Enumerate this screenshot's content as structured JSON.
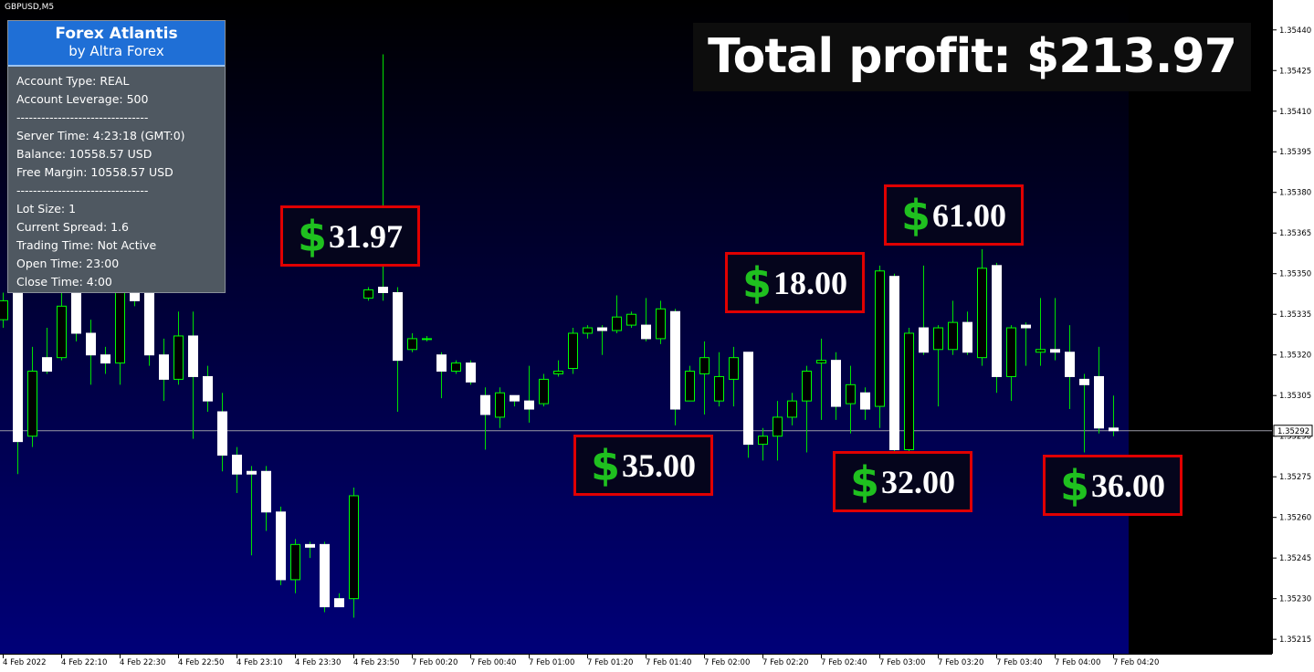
{
  "symbol": "GBPUSD,M5",
  "info_panel": {
    "title": "Forex Atlantis",
    "subtitle": "by Altra Forex",
    "lines": [
      "Account Type: REAL",
      "Account Leverage: 500",
      "--------------------------------",
      "Server Time: 4:23:18 (GMT:0)",
      "Balance: 10558.57 USD",
      "Free Margin: 10558.57 USD",
      "--------------------------------",
      "Lot Size: 1",
      "Current Spread: 1.6",
      "Trading Time: Not Active",
      "Open Time: 23:00",
      "Close Time: 4:00"
    ]
  },
  "total_profit": "Total profit: $213.97",
  "chart_data": {
    "type": "candlestick",
    "categories": [
      "4 Feb 2022",
      null,
      null,
      null,
      "4 Feb 22:10",
      null,
      null,
      null,
      "4 Feb 22:30",
      null,
      null,
      null,
      "4 Feb 22:50",
      null,
      null,
      null,
      "4 Feb 23:10",
      null,
      null,
      null,
      "4 Feb 23:30",
      null,
      null,
      null,
      "4 Feb 23:50",
      null,
      null,
      null,
      "7 Feb 00:20",
      null,
      null,
      null,
      "7 Feb 00:40",
      null,
      null,
      null,
      "7 Feb 01:00",
      null,
      null,
      null,
      "7 Feb 01:20",
      null,
      null,
      null,
      "7 Feb 01:40",
      null,
      null,
      null,
      "7 Feb 02:00",
      null,
      null,
      null,
      "7 Feb 02:20",
      null,
      null,
      null,
      "7 Feb 02:40",
      null,
      null,
      null,
      "7 Feb 03:00",
      null,
      null,
      null,
      "7 Feb 03:20",
      null,
      null,
      null,
      "7 Feb 03:40",
      null,
      null,
      null,
      "7 Feb 04:00",
      null,
      null,
      null,
      "7 Feb 04:20"
    ],
    "open": [
      1.35333,
      1.35343,
      1.3529,
      1.35319,
      1.35319,
      1.35343,
      1.35328,
      1.3532,
      1.35317,
      1.35343,
      1.35343,
      1.3532,
      1.35311,
      1.35327,
      1.35312,
      1.35299,
      1.35283,
      1.35277,
      1.35277,
      1.35262,
      1.35237,
      1.3525,
      1.3525,
      1.3523,
      1.3523,
      1.35341,
      1.35345,
      1.35343,
      1.35322,
      1.35326,
      1.3532,
      1.35314,
      1.35317,
      1.35305,
      1.35297,
      1.35305,
      1.35303,
      1.35302,
      1.35313,
      1.35315,
      1.35328,
      1.3533,
      1.35329,
      1.35331,
      1.35331,
      1.35326,
      1.35336,
      1.35303,
      1.35313,
      1.35303,
      1.35311,
      1.35321,
      1.35287,
      1.3529,
      1.35297,
      1.35303,
      1.35317,
      1.35318,
      1.35302,
      1.35306,
      1.35301,
      1.35349,
      1.35285,
      1.3533,
      1.35322,
      1.35322,
      1.35332,
      1.35319,
      1.35353,
      1.35312,
      1.35331,
      1.35321,
      1.35322,
      1.35321,
      1.35311,
      1.35312,
      1.35293
    ],
    "high": [
      1.35343,
      1.35347,
      1.35323,
      1.3533,
      1.35343,
      1.3535,
      1.35333,
      1.35323,
      1.35347,
      1.35347,
      1.3535,
      1.35326,
      1.35336,
      1.35336,
      1.35316,
      1.35306,
      1.35286,
      1.35279,
      1.35279,
      1.35264,
      1.35252,
      1.35251,
      1.35251,
      1.35232,
      1.35271,
      1.35345,
      1.35431,
      1.35345,
      1.35328,
      1.35327,
      1.35321,
      1.35318,
      1.35318,
      1.35308,
      1.35308,
      1.35305,
      1.35316,
      1.35313,
      1.35318,
      1.3533,
      1.35331,
      1.35331,
      1.35342,
      1.35336,
      1.35341,
      1.3534,
      1.35337,
      1.35316,
      1.35325,
      1.35321,
      1.35323,
      1.35321,
      1.35293,
      1.35303,
      1.35306,
      1.35316,
      1.35326,
      1.35321,
      1.35316,
      1.35308,
      1.35353,
      1.3535,
      1.3533,
      1.35353,
      1.35331,
      1.3534,
      1.35336,
      1.35359,
      1.35354,
      1.35331,
      1.35332,
      1.35341,
      1.35341,
      1.35331,
      1.35313,
      1.35323,
      1.35305
    ],
    "low": [
      1.3533,
      1.35276,
      1.35286,
      1.35313,
      1.35318,
      1.35325,
      1.35309,
      1.35313,
      1.35309,
      1.35338,
      1.35316,
      1.35303,
      1.35309,
      1.35289,
      1.35299,
      1.35277,
      1.35269,
      1.35246,
      1.35255,
      1.35235,
      1.35232,
      1.35245,
      1.35225,
      1.35227,
      1.35223,
      1.3534,
      1.3534,
      1.35299,
      1.35321,
      1.35325,
      1.35304,
      1.35313,
      1.35309,
      1.35285,
      1.35293,
      1.35301,
      1.35295,
      1.35301,
      1.35312,
      1.35313,
      1.35326,
      1.3532,
      1.35328,
      1.3533,
      1.35325,
      1.35324,
      1.35294,
      1.35303,
      1.35298,
      1.35301,
      1.35301,
      1.35282,
      1.35281,
      1.35281,
      1.35294,
      1.35284,
      1.35296,
      1.35296,
      1.35291,
      1.35296,
      1.35293,
      1.35284,
      1.35284,
      1.3532,
      1.35301,
      1.3532,
      1.3532,
      1.35316,
      1.35306,
      1.35303,
      1.35316,
      1.35316,
      1.35318,
      1.353,
      1.35284,
      1.35291,
      1.3529
    ],
    "close": [
      1.3534,
      1.35288,
      1.35314,
      1.35314,
      1.35338,
      1.35328,
      1.3532,
      1.35317,
      1.35343,
      1.3534,
      1.3532,
      1.35311,
      1.35327,
      1.35312,
      1.35303,
      1.35283,
      1.35276,
      1.35276,
      1.35262,
      1.35237,
      1.3525,
      1.35249,
      1.35227,
      1.35227,
      1.35268,
      1.35344,
      1.35343,
      1.35318,
      1.35326,
      1.35326,
      1.35314,
      1.35317,
      1.3531,
      1.35298,
      1.35306,
      1.35303,
      1.353,
      1.35311,
      1.35314,
      1.35328,
      1.3533,
      1.35329,
      1.35334,
      1.35335,
      1.35326,
      1.35337,
      1.353,
      1.35314,
      1.35319,
      1.35312,
      1.35319,
      1.35287,
      1.3529,
      1.35297,
      1.35303,
      1.35314,
      1.35318,
      1.35301,
      1.35309,
      1.353,
      1.35351,
      1.35285,
      1.35328,
      1.35321,
      1.3533,
      1.35332,
      1.35321,
      1.35352,
      1.35312,
      1.3533,
      1.3533,
      1.35322,
      1.35321,
      1.35312,
      1.35309,
      1.35293,
      1.35292
    ],
    "up_fill": "#000000",
    "up_line": "#00ff00",
    "down_fill": "#ffffff",
    "down_line": "#ffffff",
    "wick_color": "#00e000",
    "ylim": [
      1.3521,
      1.35447
    ],
    "yticks": [
      {
        "value": 1.3544,
        "label": "1.35440"
      },
      1.35425,
      {
        "value": 1.3541,
        "label": "1.35410"
      },
      1.35395,
      {
        "value": 1.3538,
        "label": "1.35380"
      },
      1.35365,
      {
        "value": 1.3535,
        "label": "1.35350"
      },
      1.35335,
      {
        "value": 1.3532,
        "label": "1.35320"
      },
      1.35305,
      {
        "value": 1.3529,
        "label": "1.35290"
      },
      1.35275,
      {
        "value": 1.3526,
        "label": "1.35260"
      },
      1.35245,
      {
        "value": 1.3523,
        "label": "1.35230"
      },
      1.35215
    ],
    "current_price": 1.35292,
    "annotations": [
      {
        "symbol": "$",
        "amount": "31.97"
      },
      {
        "symbol": "$",
        "amount": "18.00"
      },
      {
        "symbol": "$",
        "amount": "61.00"
      },
      {
        "symbol": "$",
        "amount": "35.00"
      },
      {
        "symbol": "$",
        "amount": "32.00"
      },
      {
        "symbol": "$",
        "amount": "36.00"
      }
    ]
  }
}
